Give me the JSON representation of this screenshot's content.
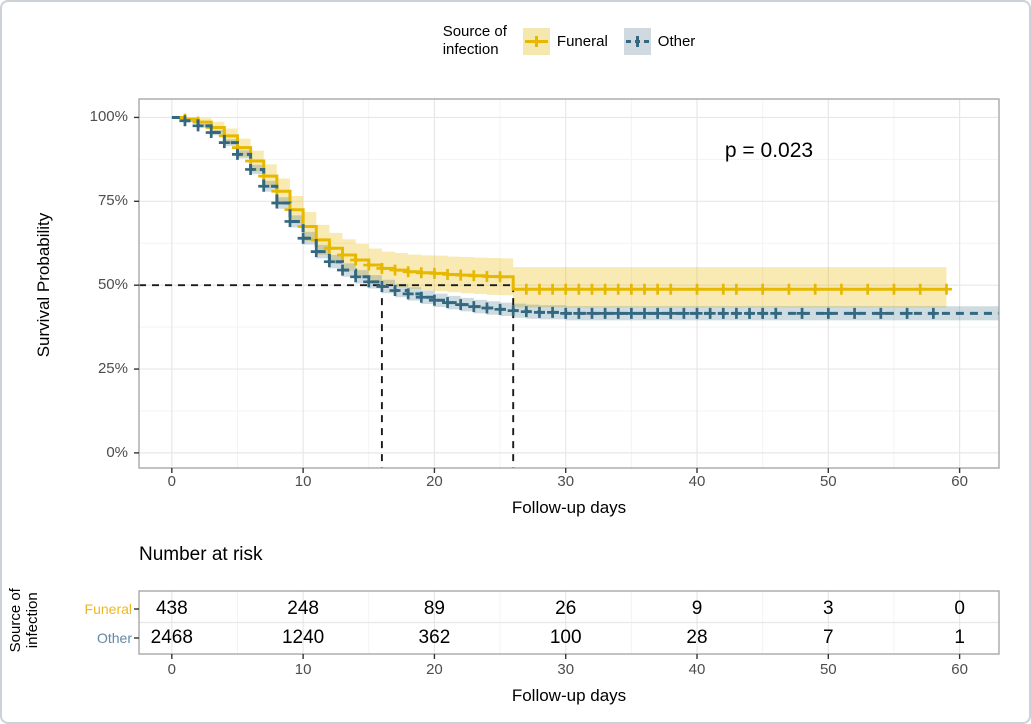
{
  "figure": {
    "background": "#ffffff",
    "border_color": "#ccd2d8",
    "panel_border": "#a8a8a8",
    "grid_major": "#e7e7e7",
    "grid_minor": "#f3f3f3",
    "tick_color": "#333333",
    "tick_label_color": "#4d4d4d",
    "median_line_color": "#1a1a1a"
  },
  "legend": {
    "title_lines": [
      "Source of",
      "infection"
    ]
  },
  "chart_data": {
    "type": "line",
    "subtype": "kaplan-meier-step",
    "title": "",
    "xlabel": "Follow-up days",
    "ylabel": "Survival Probability",
    "x_ticks": [
      0,
      10,
      20,
      30,
      40,
      50,
      60
    ],
    "x_minor_ticks": [
      5,
      15,
      25,
      35,
      45,
      55
    ],
    "y_ticks": [
      0,
      25,
      50,
      75,
      100
    ],
    "y_tick_labels": [
      "0%",
      "25%",
      "50%",
      "75%",
      "100%"
    ],
    "y_minor_ticks": [
      12.5,
      37.5,
      62.5,
      87.5
    ],
    "xlim": [
      -2.5,
      63
    ],
    "ylim": [
      -4.5,
      105.5
    ],
    "grid": true,
    "legend_position": "top",
    "p_label": "p = 0.023",
    "p_pos": {
      "day": 45.5,
      "pct": 90
    },
    "medians": {
      "survival_pct": 50,
      "times": [
        16,
        26
      ]
    },
    "series": [
      {
        "name": "Funeral",
        "color": "#E7B800",
        "band_fill": "rgba(231,184,0,0.30)",
        "key_bg": "#F4E8AE",
        "label_color": "#EDB820",
        "linestyle": "solid",
        "end_time": 59,
        "steps": [
          [
            0,
            100,
            100,
            100
          ],
          [
            1,
            99.5,
            98.6,
            100
          ],
          [
            2,
            98.6,
            97.4,
            99.8
          ],
          [
            3,
            97,
            95.3,
            98.7
          ],
          [
            4,
            94.5,
            92.3,
            96.7
          ],
          [
            5,
            91,
            88.3,
            93.7
          ],
          [
            6,
            87,
            83.9,
            90.1
          ],
          [
            7,
            82.5,
            79,
            86
          ],
          [
            8,
            78,
            74.2,
            81.8
          ],
          [
            9,
            72.5,
            68.4,
            76.6
          ],
          [
            10,
            67.5,
            63.2,
            71.8
          ],
          [
            11,
            63.5,
            59,
            68
          ],
          [
            12,
            61,
            56.4,
            65.6
          ],
          [
            13,
            59,
            54.3,
            63.7
          ],
          [
            14,
            57.5,
            52.7,
            62.3
          ],
          [
            15,
            56,
            51.1,
            60.9
          ],
          [
            16,
            55,
            50,
            60
          ],
          [
            17,
            54.5,
            49.4,
            59.6
          ],
          [
            18,
            54,
            48.9,
            59.1
          ],
          [
            19,
            53.7,
            48.5,
            58.9
          ],
          [
            20,
            53.5,
            48.2,
            58.8
          ],
          [
            21,
            53.2,
            47.9,
            58.5
          ],
          [
            22,
            53,
            47.6,
            58.4
          ],
          [
            23,
            52.8,
            47.4,
            58.2
          ],
          [
            24,
            52.6,
            47.1,
            58.1
          ],
          [
            25,
            52.5,
            47,
            58
          ],
          [
            26,
            48.8,
            43.4,
            55.4
          ]
        ],
        "censor_times": [
          1,
          2,
          3,
          4,
          5,
          6,
          7,
          8,
          9,
          10,
          11,
          12,
          13,
          14,
          15,
          16,
          17,
          18,
          19,
          20,
          21,
          22,
          23,
          24,
          25,
          27,
          28,
          29,
          30,
          31,
          32,
          33,
          34,
          35,
          36,
          37,
          38,
          40,
          42,
          43,
          45,
          47,
          49,
          51,
          53,
          55,
          57,
          59
        ]
      },
      {
        "name": "Other",
        "color": "#336880",
        "band_fill": "rgba(51,104,128,0.24)",
        "key_bg": "#CFD9DF",
        "label_color": "#6289A3",
        "linestyle": "dashed",
        "end_time": 63,
        "steps": [
          [
            0,
            100,
            100,
            100
          ],
          [
            1,
            99,
            98.6,
            99.4
          ],
          [
            2,
            97.5,
            96.9,
            98.1
          ],
          [
            3,
            95.5,
            94.7,
            96.3
          ],
          [
            4,
            92.5,
            91.5,
            93.5
          ],
          [
            5,
            89,
            87.8,
            90.2
          ],
          [
            6,
            84.5,
            83.1,
            85.9
          ],
          [
            7,
            79.5,
            77.9,
            81.1
          ],
          [
            8,
            74.5,
            72.8,
            76.2
          ],
          [
            9,
            69,
            67.2,
            70.8
          ],
          [
            10,
            64,
            62.1,
            65.9
          ],
          [
            11,
            60,
            58,
            62
          ],
          [
            12,
            57,
            55,
            59
          ],
          [
            13,
            54.5,
            52.5,
            56.5
          ],
          [
            14,
            52.5,
            50.5,
            54.5
          ],
          [
            15,
            51,
            49,
            53
          ],
          [
            16,
            49.6,
            47.6,
            51.6
          ],
          [
            17,
            48.4,
            46.4,
            50.4
          ],
          [
            18,
            47.4,
            45.4,
            49.4
          ],
          [
            19,
            46.4,
            44.4,
            48.4
          ],
          [
            20,
            45.5,
            43.5,
            47.5
          ],
          [
            21,
            44.8,
            42.8,
            46.8
          ],
          [
            22,
            44.2,
            42.2,
            46.2
          ],
          [
            23,
            43.6,
            41.6,
            45.6
          ],
          [
            24,
            43.2,
            41.2,
            45.2
          ],
          [
            25,
            42.8,
            40.8,
            44.8
          ],
          [
            26,
            42.4,
            40.3,
            44.5
          ],
          [
            27,
            42.1,
            40,
            44.2
          ],
          [
            28,
            41.9,
            39.8,
            44
          ],
          [
            30,
            41.6,
            39.5,
            43.7
          ]
        ],
        "censor_times": [
          1,
          2,
          3,
          4,
          5,
          6,
          7,
          8,
          9,
          10,
          11,
          12,
          13,
          14,
          15,
          16,
          17,
          18,
          19,
          20,
          21,
          22,
          23,
          24,
          25,
          26,
          27,
          28,
          29,
          30,
          31,
          32,
          33,
          34,
          35,
          36,
          37,
          38,
          39,
          40,
          41,
          42,
          43,
          44,
          45,
          46,
          48,
          50,
          52,
          54,
          56,
          58
        ]
      }
    ]
  },
  "risk_table": {
    "title": "Number at risk",
    "strata_label_lines": [
      "Source of",
      "infection"
    ],
    "axis_label": "Follow-up days",
    "times": [
      0,
      10,
      20,
      30,
      40,
      50,
      60
    ],
    "rows": [
      {
        "label": "Funeral",
        "label_color": "#EDB820",
        "counts": [
          "438",
          "248",
          "89",
          "26",
          "9",
          "3",
          "0"
        ]
      },
      {
        "label": "Other",
        "label_color": "#6289A3",
        "counts": [
          "2468",
          "1240",
          "362",
          "100",
          "28",
          "7",
          "1"
        ]
      }
    ]
  }
}
